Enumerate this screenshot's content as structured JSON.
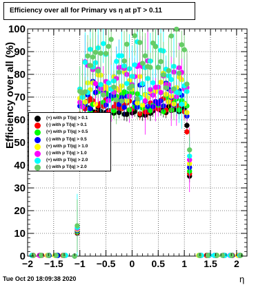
{
  "chart_data": {
    "type": "scatter",
    "title": "Efficiency over all for Primary vs   η at pT > 0.11",
    "xlabel": "η",
    "ylabel": "Efficiency over all (%)",
    "xlim": [
      -2,
      2.2
    ],
    "ylim": [
      0,
      100
    ],
    "x_ticks": [
      "−2",
      "−1.5",
      "−1",
      "−0.5",
      "0",
      "0.5",
      "1",
      "1.5",
      "2"
    ],
    "y_ticks": [
      "0",
      "10",
      "20",
      "30",
      "40",
      "50",
      "60",
      "70",
      "80",
      "90",
      "100"
    ],
    "grid": true,
    "legend_position": "left-middle",
    "series": [
      {
        "name": "(+) with p T/|q| > 0.1",
        "color": "#000000",
        "base": 64
      },
      {
        "name": "(-) with p T/|q| > 0.1",
        "color": "#ff0000",
        "base": 66
      },
      {
        "name": "(+) with p T/|q| > 0.5",
        "color": "#00ff00",
        "base": 68
      },
      {
        "name": "(-) with p T/|q| > 0.5",
        "color": "#0000ff",
        "base": 71
      },
      {
        "name": "(+) with p T/|q| > 1.0",
        "color": "#ffff00",
        "base": 74
      },
      {
        "name": "(-) with p T/|q| > 1.0",
        "color": "#ff00ff",
        "base": 77
      },
      {
        "name": "(+) with p T/|q| > 2.0",
        "color": "#00ffff",
        "base": 80
      },
      {
        "name": "(-) with p T/|q| > 2.0",
        "color": "#66cc66",
        "base": 85
      }
    ]
  },
  "timestamp": "Tue Oct 20 18:09:38 2020"
}
